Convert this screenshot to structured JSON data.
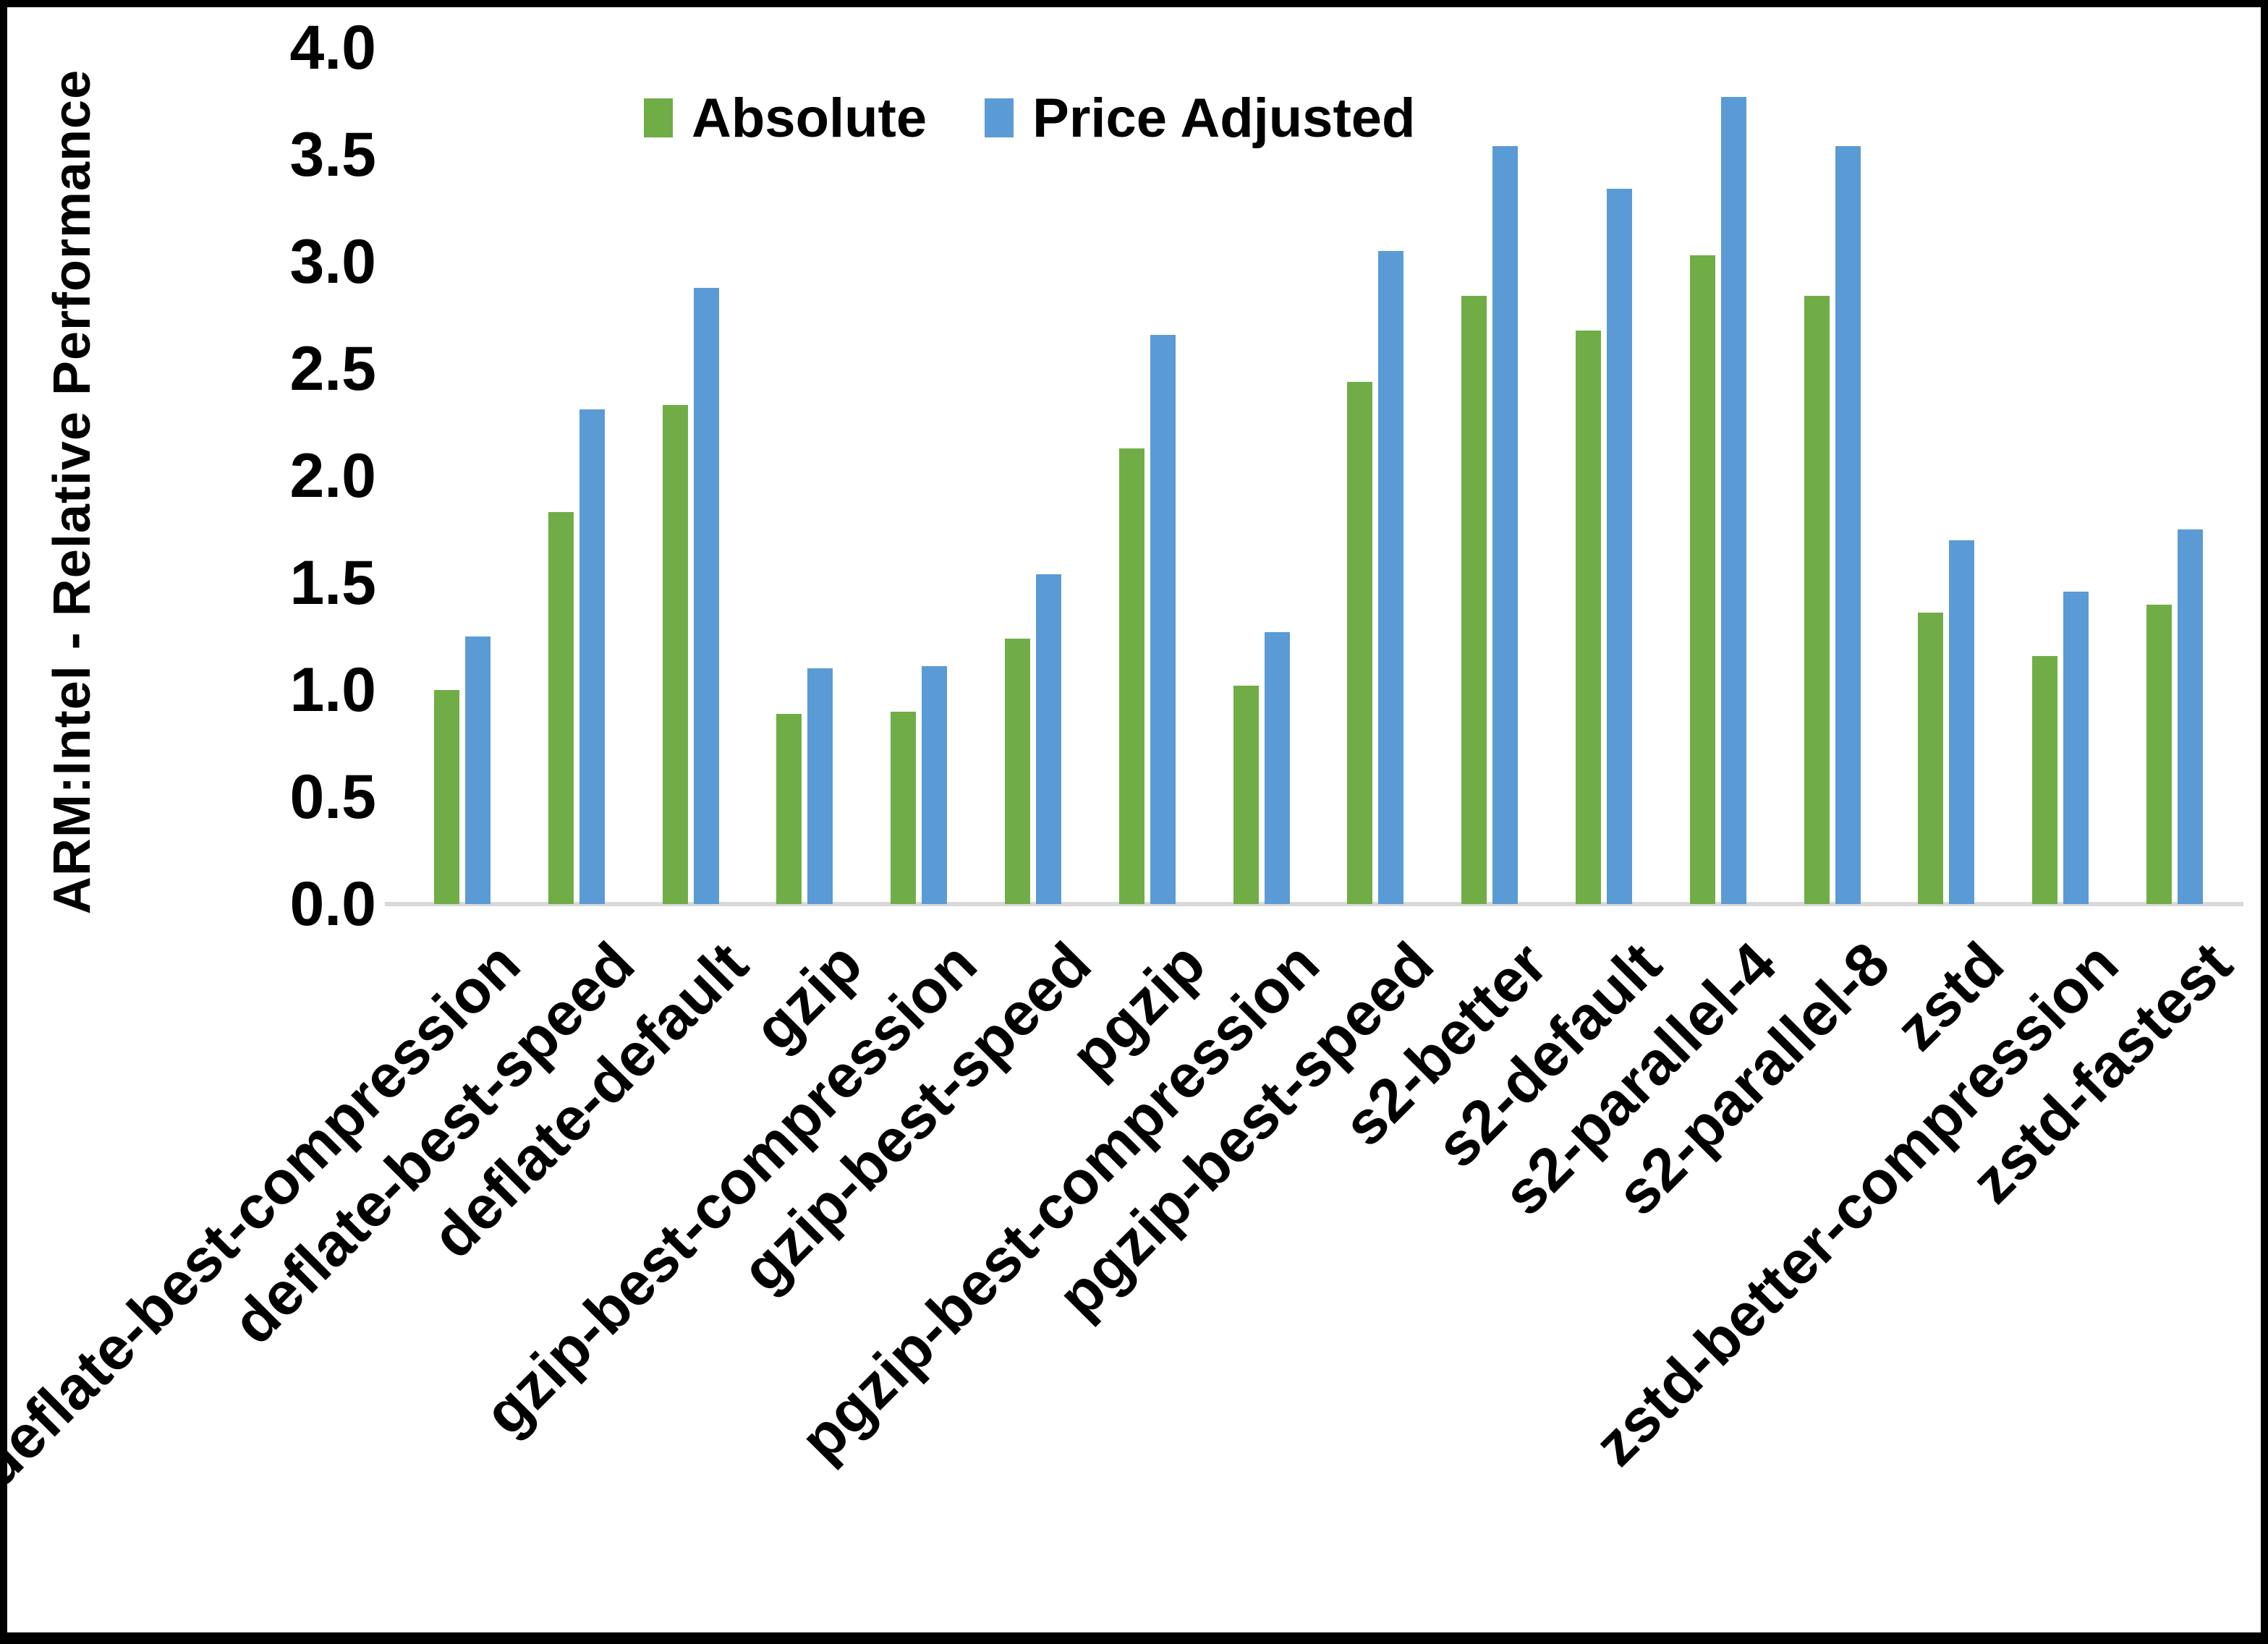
{
  "frame": {
    "background": "#ffffff",
    "border_color": "#000000"
  },
  "legend": {
    "position": "top-center",
    "items": [
      {
        "label": "Absolute",
        "color": "#70AD47"
      },
      {
        "label": "Price Adjusted",
        "color": "#5B9BD5"
      }
    ]
  },
  "chart_data": {
    "type": "bar",
    "title": "",
    "xlabel": "",
    "ylabel": "ARM:Intel - Relative Performance",
    "ylim": [
      0.0,
      4.0
    ],
    "ytick_step": 0.5,
    "yticks": [
      "0.0",
      "0.5",
      "1.0",
      "1.5",
      "2.0",
      "2.5",
      "3.0",
      "3.5",
      "4.0"
    ],
    "grid": false,
    "legend_position": "top-center",
    "axis_line_color": "#d9d9d9",
    "categories": [
      "deflate-best-compression",
      "deflate-best-speed",
      "deflate-default",
      "gzip",
      "gzip-best-compression",
      "gzip-best-speed",
      "pgzip",
      "pgzip-best-compression",
      "pgzip-best-speed",
      "s2-better",
      "s2-default",
      "s2-parallel-4",
      "s2-parallel-8",
      "zstd",
      "zstd-better-compression",
      "zstd-fastest"
    ],
    "series": [
      {
        "name": "Absolute",
        "color": "#70AD47",
        "values": [
          1.0,
          1.83,
          2.33,
          0.89,
          0.9,
          1.24,
          2.13,
          1.02,
          2.44,
          2.84,
          2.68,
          3.03,
          2.84,
          1.36,
          1.16,
          1.4
        ]
      },
      {
        "name": "Price Adjusted",
        "color": "#5B9BD5",
        "values": [
          1.25,
          2.31,
          2.88,
          1.1,
          1.11,
          1.54,
          2.66,
          1.27,
          3.05,
          3.54,
          3.34,
          3.77,
          3.54,
          1.7,
          1.46,
          1.75
        ]
      }
    ]
  }
}
